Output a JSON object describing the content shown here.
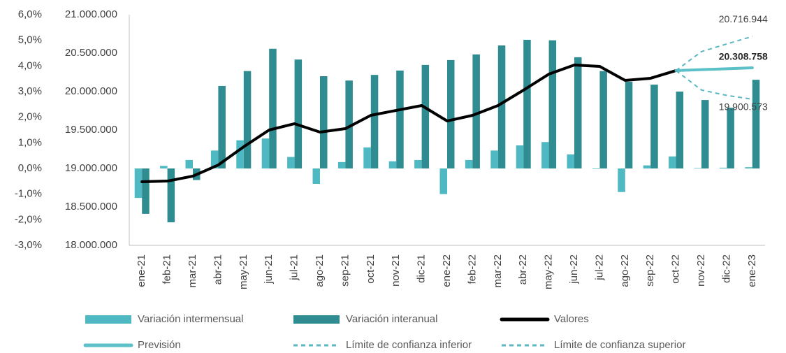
{
  "chart_data": {
    "type": "bar",
    "categories": [
      "ene-21",
      "feb-21",
      "mar-21",
      "abr-21",
      "may-21",
      "jun-21",
      "jul-21",
      "ago-21",
      "sep-21",
      "oct-21",
      "nov-21",
      "dic-21",
      "ene-22",
      "feb-22",
      "mar-22",
      "abr-22",
      "may-22",
      "jun-22",
      "jul-22",
      "ago-22",
      "sep-22",
      "oct-22",
      "nov-22",
      "dic-22",
      "ene-23"
    ],
    "ylim": [
      -3,
      6
    ],
    "yticks": [
      {
        "value": -3,
        "label": "-3,0%"
      },
      {
        "value": -2,
        "label": "-2,0%"
      },
      {
        "value": -1,
        "label": "-1,0%"
      },
      {
        "value": 0,
        "label": "0,0%"
      },
      {
        "value": 1,
        "label": "1,0%"
      },
      {
        "value": 2,
        "label": "2,0%"
      },
      {
        "value": 3,
        "label": "3,0%"
      },
      {
        "value": 4,
        "label": "4,0%"
      },
      {
        "value": 5,
        "label": "5,0%"
      },
      {
        "value": 6,
        "label": "6,0%"
      }
    ],
    "y2lim": [
      18000000,
      21000000
    ],
    "y2ticks": [
      {
        "value": 18000000,
        "label": "18.000.000"
      },
      {
        "value": 18500000,
        "label": "18.500.000"
      },
      {
        "value": 19000000,
        "label": "19.000.000"
      },
      {
        "value": 19500000,
        "label": "19.500.000"
      },
      {
        "value": 20000000,
        "label": "20.000.000"
      },
      {
        "value": 20500000,
        "label": "20.500.000"
      },
      {
        "value": 21000000,
        "label": "21.000.000"
      }
    ],
    "series": [
      {
        "name": "Variación intermensual",
        "type": "bar",
        "color": "#4fb9c3",
        "values": [
          -1.15,
          0.1,
          0.33,
          0.7,
          1.1,
          1.17,
          0.45,
          -0.6,
          0.25,
          0.82,
          0.28,
          0.33,
          -1.0,
          0.33,
          0.7,
          0.9,
          1.03,
          0.55,
          -0.02,
          -0.92,
          0.12,
          0.47,
          0.02,
          0.03,
          0.05
        ]
      },
      {
        "name": "Variación interanual",
        "type": "bar",
        "color": "#2f8c91",
        "values": [
          -1.77,
          -2.1,
          -0.45,
          3.22,
          3.8,
          4.67,
          4.25,
          3.6,
          3.43,
          3.65,
          3.82,
          4.04,
          4.23,
          4.45,
          4.8,
          5.02,
          5.0,
          4.34,
          3.8,
          3.38,
          3.27,
          3.0,
          2.67,
          2.37,
          3.46
        ]
      },
      {
        "name": "Valores",
        "type": "line",
        "axis": "y2",
        "color": "#000000",
        "width": 4,
        "values": [
          18827000,
          18836000,
          18900000,
          19045000,
          19282000,
          19500000,
          19582000,
          19473000,
          19518000,
          19691000,
          19755000,
          19818000,
          19618000,
          19691000,
          19818000,
          20018000,
          20227000,
          20345000,
          20327000,
          20145000,
          20173000,
          20273000,
          null,
          null,
          null
        ]
      },
      {
        "name": "Previsión",
        "type": "line",
        "axis": "y2",
        "color": "#5bc0c8",
        "width": 4,
        "values": [
          null,
          null,
          null,
          null,
          null,
          null,
          null,
          null,
          null,
          null,
          null,
          null,
          null,
          null,
          null,
          null,
          null,
          null,
          null,
          null,
          null,
          20273000,
          20285000,
          20297000,
          20308758
        ],
        "value_labels": [
          null,
          null,
          null,
          null,
          null,
          null,
          null,
          null,
          null,
          null,
          null,
          null,
          null,
          null,
          null,
          null,
          null,
          null,
          null,
          null,
          null,
          null,
          null,
          null,
          "20.308.758"
        ]
      },
      {
        "name": "Límite de confianza inferior",
        "type": "line",
        "axis": "y2",
        "color": "#5bb8c0",
        "width": 2,
        "dashed": true,
        "values": [
          null,
          null,
          null,
          null,
          null,
          null,
          null,
          null,
          null,
          null,
          null,
          null,
          null,
          null,
          null,
          null,
          null,
          null,
          null,
          null,
          null,
          20273000,
          20020000,
          19950000,
          19900573
        ],
        "value_labels": [
          null,
          null,
          null,
          null,
          null,
          null,
          null,
          null,
          null,
          null,
          null,
          null,
          null,
          null,
          null,
          null,
          null,
          null,
          null,
          null,
          null,
          null,
          null,
          null,
          "19.900.573"
        ]
      },
      {
        "name": "Límite de confianza superior",
        "type": "line",
        "axis": "y2",
        "color": "#5bb8c0",
        "width": 2,
        "dashed": true,
        "values": [
          null,
          null,
          null,
          null,
          null,
          null,
          null,
          null,
          null,
          null,
          null,
          null,
          null,
          null,
          null,
          null,
          null,
          null,
          null,
          null,
          null,
          20273000,
          20520000,
          20620000,
          20716944
        ],
        "value_labels": [
          null,
          null,
          null,
          null,
          null,
          null,
          null,
          null,
          null,
          null,
          null,
          null,
          null,
          null,
          null,
          null,
          null,
          null,
          null,
          null,
          null,
          null,
          null,
          null,
          "20.716.944"
        ]
      }
    ]
  }
}
